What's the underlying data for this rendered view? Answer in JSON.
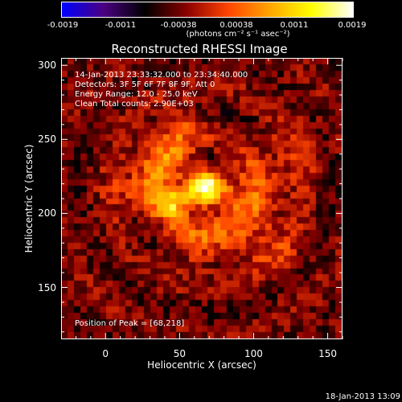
{
  "chart_data": {
    "type": "heatmap",
    "title": "Reconstructed RHESSI Image",
    "xlabel": "Heliocentric X (arcsec)",
    "ylabel": "Heliocentric Y (arcsec)",
    "xlim": [
      -30,
      160
    ],
    "ylim": [
      115,
      305
    ],
    "xticks": [
      0,
      50,
      100,
      150
    ],
    "yticks": [
      150,
      200,
      250,
      300
    ],
    "colorbar": {
      "ticks": [
        "-0.0019",
        "-0.0011",
        "-0.00038",
        "0.00038",
        "0.0011",
        "0.0019"
      ],
      "range": [
        -0.0019,
        0.0019
      ],
      "units": "(photons cm⁻² s⁻¹ asec⁻²)",
      "colormap": [
        "#0000ff",
        "#4b0082",
        "#000000",
        "#8b0000",
        "#ff4500",
        "#ffa500",
        "#ffff00",
        "#ffffff"
      ]
    },
    "annotations": {
      "time": "14-Jan-2013 23:33:32.000 to 23:34:40.000",
      "detectors": "Detectors: 3F 5F 6F 7F 8F 9F, Att 0",
      "energy": "Energy Range: 12.0 - 25.0 keV",
      "clean": "Clean    Total counts: 2.90E+03",
      "peak": "Position of Peak = [68,218]"
    },
    "peak": {
      "x": 68,
      "y": 218
    },
    "sources": [
      {
        "x": 68,
        "y": 218,
        "amp": 0.0019,
        "sx": 10,
        "sy": 8
      },
      {
        "x": 45,
        "y": 206,
        "amp": 0.0014,
        "sx": 9,
        "sy": 7
      },
      {
        "x": 40,
        "y": 235,
        "amp": 0.0009,
        "sx": 14,
        "sy": 14
      },
      {
        "x": 95,
        "y": 205,
        "amp": 0.0007,
        "sx": 18,
        "sy": 18
      },
      {
        "x": 20,
        "y": 215,
        "amp": 0.0007,
        "sx": 12,
        "sy": 10
      },
      {
        "x": 60,
        "y": 180,
        "amp": 0.0006,
        "sx": 16,
        "sy": 14
      },
      {
        "x": 55,
        "y": 262,
        "amp": 0.0005,
        "sx": 10,
        "sy": 10
      },
      {
        "x": 120,
        "y": 240,
        "amp": 0.0004,
        "sx": 15,
        "sy": 20
      },
      {
        "x": 110,
        "y": 175,
        "amp": 0.0004,
        "sx": 14,
        "sy": 12
      }
    ],
    "background": -0.0004
  },
  "timestamp": "18-Jan-2013 13:09"
}
